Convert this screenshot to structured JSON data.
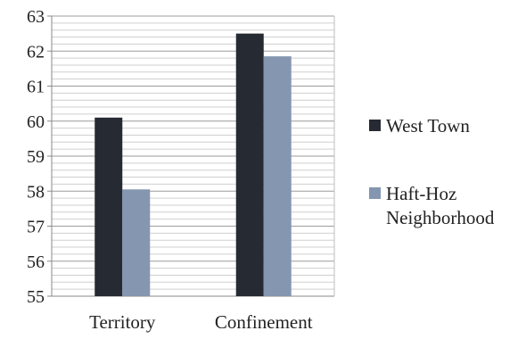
{
  "chart_data": {
    "type": "bar",
    "title": "",
    "xlabel": "",
    "ylabel": "",
    "categories": [
      "Territory",
      "Confinement"
    ],
    "series": [
      {
        "name": "West Town",
        "values": [
          60.1,
          62.5
        ],
        "color": "#252a33"
      },
      {
        "name": "Haft-Hoz Neighborhood",
        "values": [
          58.05,
          61.85
        ],
        "color": "#8496b0"
      }
    ],
    "legend_lines": [
      [
        "West Town"
      ],
      [
        "Haft-Hoz",
        "Neighborhood"
      ]
    ],
    "ylim": [
      55,
      63
    ],
    "yticks": [
      55,
      56,
      57,
      58,
      59,
      60,
      61,
      62,
      63
    ],
    "grid": true,
    "legend_position": "right"
  }
}
